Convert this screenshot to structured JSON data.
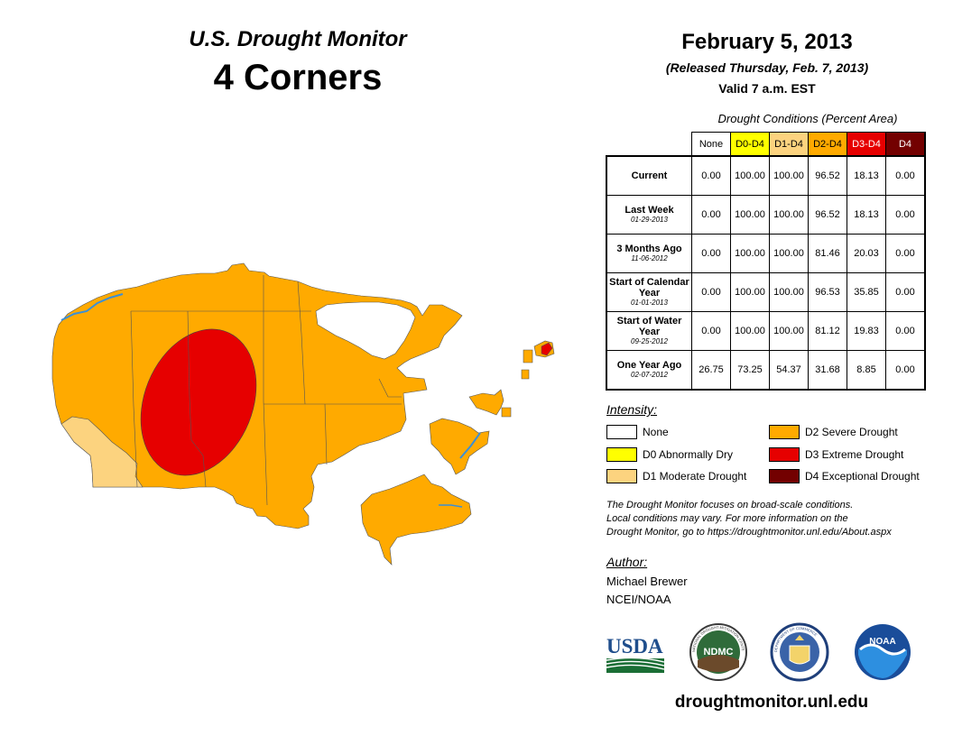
{
  "header": {
    "title": "U.S. Drought Monitor",
    "region": "4 Corners",
    "date": "February 5, 2013",
    "released": "(Released Thursday, Feb. 7, 2013)",
    "valid": "Valid 7 a.m. EST"
  },
  "table": {
    "title": "Drought Conditions (Percent Area)",
    "columns": [
      {
        "label": "None",
        "color": "#ffffff",
        "text_color": "#000000"
      },
      {
        "label": "D0-D4",
        "color": "#ffff00",
        "text_color": "#000000"
      },
      {
        "label": "D1-D4",
        "color": "#fcd37f",
        "text_color": "#000000"
      },
      {
        "label": "D2-D4",
        "color": "#ffaa00",
        "text_color": "#000000"
      },
      {
        "label": "D3-D4",
        "color": "#e60000",
        "text_color": "#ffffff"
      },
      {
        "label": "D4",
        "color": "#730000",
        "text_color": "#ffffff"
      }
    ],
    "rows": [
      {
        "label": "Current",
        "date": "",
        "values": [
          "0.00",
          "100.00",
          "100.00",
          "96.52",
          "18.13",
          "0.00"
        ]
      },
      {
        "label": "Last Week",
        "date": "01-29-2013",
        "values": [
          "0.00",
          "100.00",
          "100.00",
          "96.52",
          "18.13",
          "0.00"
        ]
      },
      {
        "label": "3 Months Ago",
        "date": "11-06-2012",
        "values": [
          "0.00",
          "100.00",
          "100.00",
          "81.46",
          "20.03",
          "0.00"
        ]
      },
      {
        "label": "Start of Calendar Year",
        "date": "01-01-2013",
        "values": [
          "0.00",
          "100.00",
          "100.00",
          "96.53",
          "35.85",
          "0.00"
        ]
      },
      {
        "label": "Start of Water Year",
        "date": "09-25-2012",
        "values": [
          "0.00",
          "100.00",
          "100.00",
          "81.12",
          "19.83",
          "0.00"
        ]
      },
      {
        "label": "One Year Ago",
        "date": "02-07-2012",
        "values": [
          "26.75",
          "73.25",
          "54.37",
          "31.68",
          "8.85",
          "0.00"
        ]
      }
    ]
  },
  "legend": {
    "title": "Intensity:",
    "items": [
      {
        "label": "None",
        "color": "#ffffff"
      },
      {
        "label": "D0 Abnormally Dry",
        "color": "#ffff00"
      },
      {
        "label": "D1 Moderate Drought",
        "color": "#fcd37f"
      },
      {
        "label": "D2 Severe Drought",
        "color": "#ffaa00"
      },
      {
        "label": "D3 Extreme Drought",
        "color": "#e60000"
      },
      {
        "label": "D4 Exceptional Drought",
        "color": "#730000"
      }
    ]
  },
  "note": {
    "line1": "The Drought Monitor focuses on broad-scale conditions.",
    "line2": "Local conditions may vary. For more information on the",
    "line3": "Drought Monitor, go to https://droughtmonitor.unl.edu/About.aspx"
  },
  "author": {
    "title": "Author:",
    "name": "Michael Brewer",
    "org": "NCEI/NOAA"
  },
  "logos": {
    "usda": "USDA",
    "ndmc": "NDMC",
    "noaa": "NOAA",
    "ndmc_ring": "NATIONAL DROUGHT MITIGATION CENTER",
    "doc_ring": "DEPARTMENT OF COMMERCE"
  },
  "website": "droughtmonitor.unl.edu",
  "colors": {
    "d2": "#ffaa00",
    "d3": "#e60000",
    "d1": "#fcd37f",
    "water": "#3b8fd6"
  }
}
